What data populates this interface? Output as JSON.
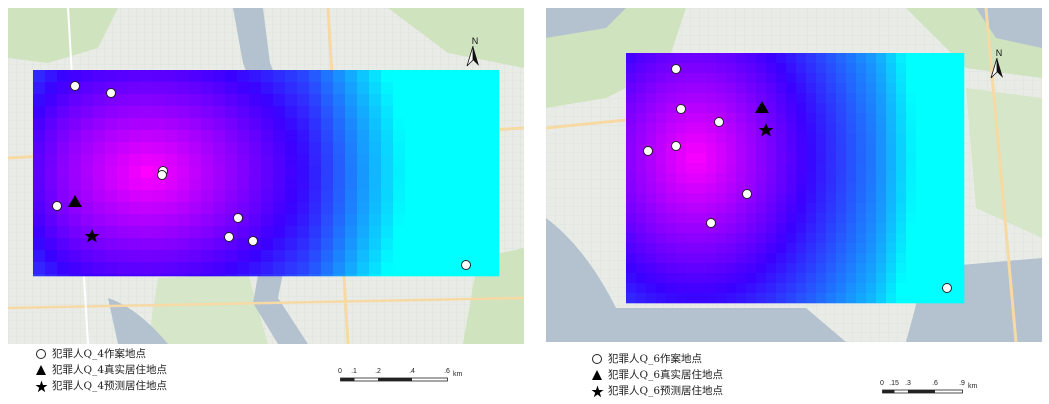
{
  "map1": {
    "north_label": "N",
    "legend": [
      {
        "symbol": "circle-icon",
        "label": "犯罪人Q_4作案地点"
      },
      {
        "symbol": "triangle-icon",
        "label": "犯罪人Q_4真实居住地点"
      },
      {
        "symbol": "star-icon",
        "label": "犯罪人Q_4预测居住地点"
      }
    ],
    "scale": {
      "ticks": [
        "0",
        ".1",
        ".2",
        ".4",
        ".6"
      ],
      "unit": "km"
    }
  },
  "map2": {
    "north_label": "N",
    "legend": [
      {
        "symbol": "circle-icon",
        "label": "犯罪人Q_6作案地点"
      },
      {
        "symbol": "triangle-icon",
        "label": "犯罪人Q_6真实居住地点"
      },
      {
        "symbol": "star-icon",
        "label": "犯罪人Q_6预测居住地点"
      }
    ],
    "scale": {
      "ticks": [
        "0",
        ".15",
        ".3",
        ".6",
        ".9"
      ],
      "unit": "km"
    }
  },
  "colors": {
    "hot": "#ff00ff",
    "mid": "#3a00ff",
    "cold": "#00ffff",
    "water": "#b4c1cf",
    "land": "#e9ece6",
    "green": "#cfe3bf",
    "road": "#f7d9a4"
  }
}
